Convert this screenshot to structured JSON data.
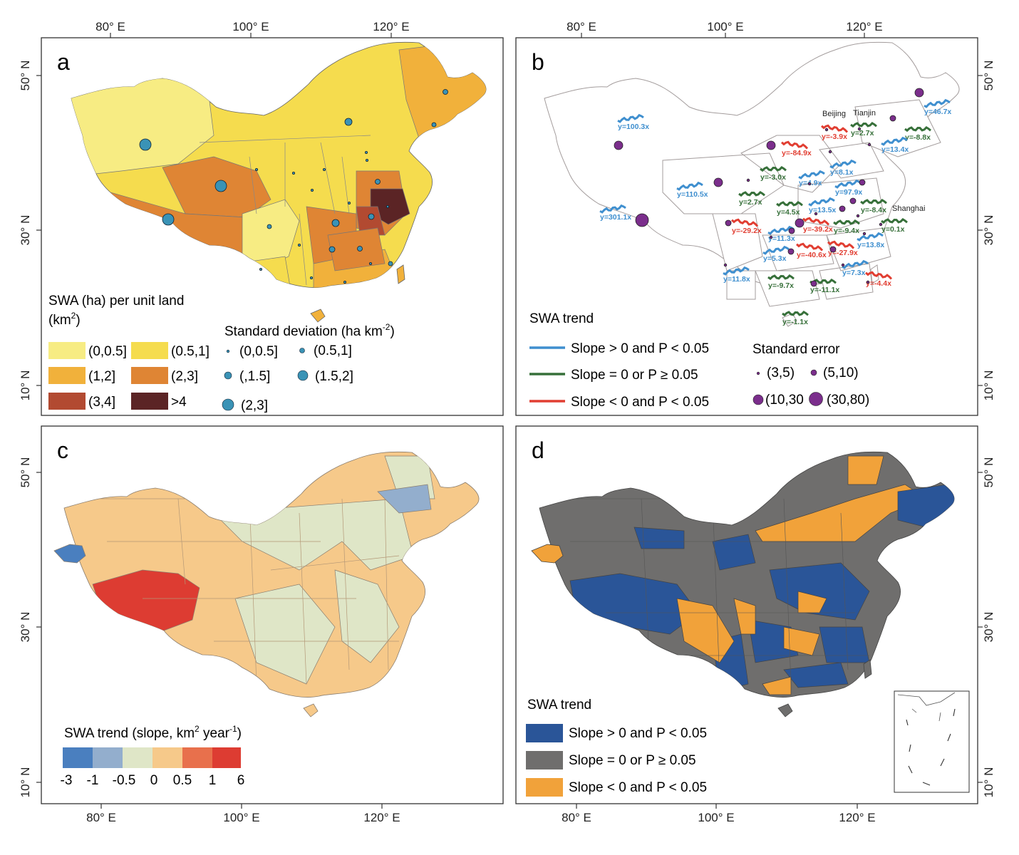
{
  "colors": {
    "a_0_05": "#f7ec83",
    "a_05_1": "#f5dc4e",
    "a_1_2": "#f1b13b",
    "a_2_3": "#df8534",
    "a_3_4": "#b24a31",
    "a_gt4": "#5b2425",
    "dot": "#3a93b6",
    "purple": "#7b2e8c",
    "trend_pos": "#3f8fcf",
    "trend_zero": "#37703a",
    "trend_neg": "#e13e32",
    "c_m3": "#4a7fbf",
    "c_m1": "#93aecd",
    "c_m05": "#dfe6c7",
    "c_0": "#f6c98a",
    "c_05": "#e8704c",
    "c_1": "#dd3c32",
    "d_pos": "#2a5598",
    "d_zero": "#6f6e6d",
    "d_neg": "#f1a23a"
  },
  "axes": {
    "lon_labels": [
      "80° E",
      "100° E",
      "120° E"
    ],
    "lat_labels": [
      "50° N",
      "30° N",
      "10° N"
    ]
  },
  "panels": {
    "a": {
      "letter": "a",
      "legend_title_1": "SWA (ha) per unit land",
      "legend_title_2a": "(km",
      "legend_title_2sup": "2",
      "legend_title_2b": ")",
      "classes": [
        "(0,0.5]",
        "(0.5,1]",
        "(1,2]",
        "(2,3]",
        "(3,4]",
        ">4"
      ],
      "sd_title_a": "Standard deviation (ha km",
      "sd_title_sup": "-2",
      "sd_title_b": ")",
      "sd_classes": [
        "(0,0.5]",
        "(0.5,1]",
        "(,1.5]",
        "(1.5,2]",
        "(2,3]"
      ]
    },
    "b": {
      "letter": "b",
      "cities": [
        "Beijing",
        "Tianjin",
        "Shanghai"
      ],
      "trend_title": "SWA trend",
      "trend_items": [
        "Slope > 0 and P < 0.05",
        "Slope = 0 or P ≥ 0.05",
        "Slope < 0 and P < 0.05"
      ],
      "se_title": "Standard error",
      "se_items": [
        "(3,5)",
        "(5,10)",
        "(10,30",
        "(30,80)"
      ],
      "slopes": [
        {
          "label": "y=100.3x",
          "trend": "pos"
        },
        {
          "label": "y=110.5x",
          "trend": "pos"
        },
        {
          "label": "y=301.1x",
          "trend": "pos"
        },
        {
          "label": "y=46.7x",
          "trend": "pos"
        },
        {
          "label": "y=-3.9x",
          "trend": "neg"
        },
        {
          "label": "y=2.7x",
          "trend": "zero"
        },
        {
          "label": "y=-8.8x",
          "trend": "zero"
        },
        {
          "label": "y=-84.9x",
          "trend": "neg"
        },
        {
          "label": "y=13.4x",
          "trend": "pos"
        },
        {
          "label": "y=-3.0x",
          "trend": "zero"
        },
        {
          "label": "y=8.1x",
          "trend": "pos"
        },
        {
          "label": "y=4.9x",
          "trend": "pos"
        },
        {
          "label": "y=97.9x",
          "trend": "pos"
        },
        {
          "label": "y=2.7x",
          "trend": "zero"
        },
        {
          "label": "y=4.5x",
          "trend": "zero"
        },
        {
          "label": "y=13.5x",
          "trend": "pos"
        },
        {
          "label": "y=-8.4x",
          "trend": "zero"
        },
        {
          "label": "y=-29.2x",
          "trend": "neg"
        },
        {
          "label": "y=-39.2x",
          "trend": "neg"
        },
        {
          "label": "y=-9.4x",
          "trend": "zero"
        },
        {
          "label": "y=0.1x",
          "trend": "zero"
        },
        {
          "label": "y=11.3x",
          "trend": "pos"
        },
        {
          "label": "y=-40.6x",
          "trend": "neg"
        },
        {
          "label": "y=-27.9x",
          "trend": "neg"
        },
        {
          "label": "y=13.8x",
          "trend": "pos"
        },
        {
          "label": "y=5.3x",
          "trend": "pos"
        },
        {
          "label": "y=7.3x",
          "trend": "pos"
        },
        {
          "label": "y=11.8x",
          "trend": "pos"
        },
        {
          "label": "y=-9.7x",
          "trend": "zero"
        },
        {
          "label": "y=-11.1x",
          "trend": "zero"
        },
        {
          "label": "y=-4.4x",
          "trend": "neg"
        },
        {
          "label": "y=-1.1x",
          "trend": "zero"
        }
      ]
    },
    "c": {
      "letter": "c",
      "legend_title_a": "SWA trend (slope, km",
      "legend_title_sup1": "2",
      "legend_title_b": " year",
      "legend_title_sup2": "-1",
      "legend_title_c": ")",
      "ticks": [
        "-3",
        "-1",
        "-0.5",
        "0",
        "0.5",
        "1",
        "6"
      ]
    },
    "d": {
      "letter": "d",
      "trend_title": "SWA trend",
      "trend_items": [
        "Slope > 0 and P < 0.05",
        "Slope = 0 or P ≥ 0.05",
        "Slope < 0 and P < 0.05"
      ]
    }
  }
}
